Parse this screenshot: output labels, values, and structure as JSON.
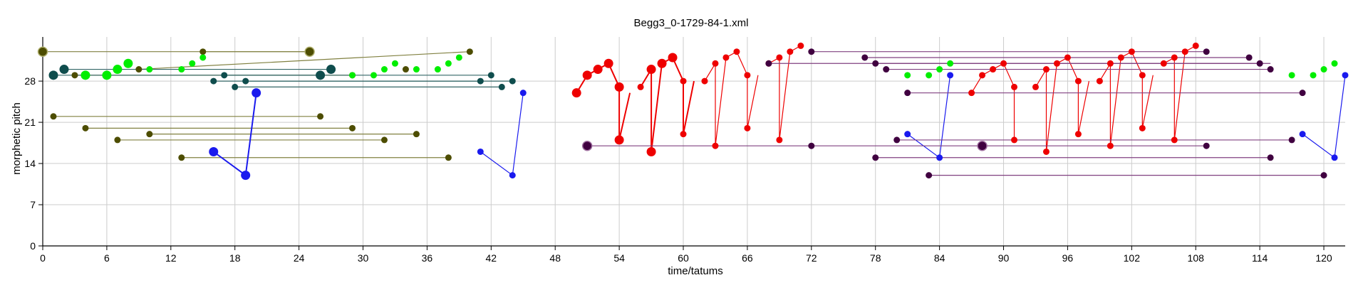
{
  "chart_data": {
    "type": "scatter",
    "title": "Begg3_0-1729-84-1.xml",
    "xlabel": "time/tatums",
    "ylabel": "morphetic pitch",
    "xlim": [
      0,
      122
    ],
    "ylim": [
      0,
      35.5
    ],
    "x_ticks": [
      0,
      6,
      12,
      18,
      24,
      30,
      36,
      42,
      48,
      54,
      60,
      66,
      72,
      78,
      84,
      90,
      96,
      102,
      108,
      114,
      120
    ],
    "y_ticks": [
      0,
      7,
      14,
      21,
      28
    ],
    "grid": true,
    "colors": {
      "olive": "#4d4d00",
      "olive_line": "#808040",
      "teal": "#0f4d4d",
      "teal_line": "#336666",
      "green": "#00ee00",
      "blue": "#1a1aee",
      "red": "#ee0000",
      "purple": "#400040",
      "purple_line": "#804080",
      "grid": "#cccccc"
    },
    "series": [
      {
        "group": "olive",
        "segments": [
          [
            [
              0,
              33
            ],
            [
              25,
              33
            ]
          ],
          [
            [
              15,
              33
            ],
            [
              25,
              33
            ]
          ],
          [
            [
              3,
              29
            ],
            [
              29,
              29
            ]
          ],
          [
            [
              9,
              30
            ],
            [
              40,
              33
            ]
          ],
          [
            [
              1,
              22
            ],
            [
              26,
              22
            ]
          ],
          [
            [
              4,
              20
            ],
            [
              29,
              20
            ]
          ],
          [
            [
              10,
              19
            ],
            [
              35,
              19
            ]
          ],
          [
            [
              7,
              18
            ],
            [
              32,
              18
            ]
          ],
          [
            [
              13,
              15
            ],
            [
              38,
              15
            ]
          ]
        ],
        "points": [
          [
            0,
            33,
            "big"
          ],
          [
            25,
            33,
            "big"
          ],
          [
            15,
            33
          ],
          [
            40,
            33
          ],
          [
            9,
            30
          ],
          [
            26,
            29
          ],
          [
            29,
            29
          ],
          [
            3,
            29
          ],
          [
            34,
            30
          ],
          [
            1,
            22
          ],
          [
            26,
            22
          ],
          [
            4,
            20
          ],
          [
            29,
            20
          ],
          [
            10,
            19
          ],
          [
            35,
            19
          ],
          [
            7,
            18
          ],
          [
            32,
            18
          ],
          [
            13,
            15
          ],
          [
            38,
            15
          ]
        ]
      },
      {
        "group": "teal",
        "segments": [
          [
            [
              1,
              29
            ],
            [
              26,
              29
            ]
          ],
          [
            [
              2,
              30
            ],
            [
              27,
              30
            ]
          ],
          [
            [
              16,
              28
            ],
            [
              41,
              28
            ]
          ],
          [
            [
              17,
              29
            ],
            [
              42,
              29
            ]
          ],
          [
            [
              18,
              27
            ],
            [
              43,
              27
            ]
          ],
          [
            [
              19,
              28
            ],
            [
              44,
              28
            ]
          ]
        ],
        "points": [
          [
            1,
            29,
            "big"
          ],
          [
            2,
            30,
            "big"
          ],
          [
            26,
            29,
            "big"
          ],
          [
            27,
            30,
            "big"
          ],
          [
            16,
            28
          ],
          [
            17,
            29
          ],
          [
            18,
            27
          ],
          [
            19,
            28
          ],
          [
            41,
            28
          ],
          [
            42,
            29
          ],
          [
            43,
            27
          ],
          [
            44,
            28
          ]
        ]
      },
      {
        "group": "green",
        "points": [
          [
            4,
            29,
            "big"
          ],
          [
            6,
            29,
            "big"
          ],
          [
            7,
            30,
            "big"
          ],
          [
            8,
            31,
            "big"
          ],
          [
            10,
            30
          ],
          [
            13,
            30
          ],
          [
            14,
            31
          ],
          [
            15,
            32
          ],
          [
            29,
            29
          ],
          [
            31,
            29
          ],
          [
            32,
            30
          ],
          [
            33,
            31
          ],
          [
            35,
            30
          ],
          [
            37,
            30
          ],
          [
            38,
            31
          ],
          [
            39,
            32
          ],
          [
            81,
            29
          ],
          [
            83,
            29
          ],
          [
            84,
            30
          ],
          [
            85,
            31
          ],
          [
            117,
            29
          ],
          [
            119,
            29
          ],
          [
            120,
            30
          ],
          [
            121,
            31
          ]
        ]
      },
      {
        "group": "blue",
        "lines": [
          [
            [
              16,
              16
            ],
            [
              19,
              12
            ],
            [
              20,
              26
            ]
          ],
          [
            [
              41,
              16
            ],
            [
              44,
              12
            ],
            [
              45,
              26
            ]
          ],
          [
            [
              81,
              19
            ],
            [
              84,
              15
            ],
            [
              85,
              29
            ]
          ],
          [
            [
              118,
              19
            ],
            [
              121,
              15
            ],
            [
              122,
              29
            ]
          ]
        ],
        "big_lines": [
          0
        ],
        "points": [
          [
            16,
            16,
            "big"
          ],
          [
            19,
            12,
            "big"
          ],
          [
            20,
            26,
            "big"
          ],
          [
            41,
            16
          ],
          [
            44,
            12
          ],
          [
            45,
            26
          ],
          [
            81,
            19
          ],
          [
            84,
            15
          ],
          [
            85,
            29
          ],
          [
            118,
            19
          ],
          [
            121,
            15
          ],
          [
            122,
            29
          ]
        ]
      },
      {
        "group": "red",
        "lines": [
          [
            [
              50,
              26
            ],
            [
              51,
              29
            ],
            [
              52,
              30
            ],
            [
              53,
              31
            ],
            [
              54,
              27
            ],
            [
              54,
              18
            ],
            [
              55,
              26
            ]
          ],
          [
            [
              56,
              27
            ],
            [
              57,
              30
            ],
            [
              57,
              16
            ],
            [
              58,
              31
            ],
            [
              59,
              32
            ],
            [
              60,
              28
            ],
            [
              60,
              19
            ],
            [
              61,
              28
            ]
          ],
          [
            [
              62,
              28
            ],
            [
              63,
              31
            ],
            [
              63,
              17
            ],
            [
              64,
              32
            ],
            [
              65,
              33
            ],
            [
              66,
              29
            ],
            [
              66,
              20
            ],
            [
              67,
              29
            ]
          ],
          [
            [
              68,
              31
            ],
            [
              69,
              32
            ],
            [
              69,
              18
            ],
            [
              70,
              33
            ],
            [
              71,
              34
            ]
          ],
          [
            [
              87,
              26
            ],
            [
              88,
              29
            ],
            [
              89,
              30
            ],
            [
              90,
              31
            ],
            [
              91,
              27
            ],
            [
              91,
              18
            ]
          ],
          [
            [
              93,
              27
            ],
            [
              94,
              30
            ],
            [
              94,
              16
            ],
            [
              95,
              31
            ],
            [
              96,
              32
            ],
            [
              97,
              28
            ],
            [
              97,
              19
            ],
            [
              98,
              28
            ]
          ],
          [
            [
              99,
              28
            ],
            [
              100,
              31
            ],
            [
              100,
              17
            ],
            [
              101,
              32
            ],
            [
              102,
              33
            ],
            [
              103,
              29
            ],
            [
              103,
              20
            ],
            [
              104,
              29
            ]
          ],
          [
            [
              105,
              31
            ],
            [
              106,
              32
            ],
            [
              106,
              18
            ],
            [
              107,
              33
            ],
            [
              108,
              34
            ]
          ]
        ],
        "big_lines": [
          0,
          1
        ],
        "points": [
          [
            50,
            26,
            "big"
          ],
          [
            51,
            29,
            "big"
          ],
          [
            52,
            30,
            "big"
          ],
          [
            53,
            31,
            "big"
          ],
          [
            54,
            27,
            "big"
          ],
          [
            54,
            18,
            "big"
          ],
          [
            57,
            30,
            "big"
          ],
          [
            57,
            16,
            "big"
          ],
          [
            58,
            31,
            "big"
          ],
          [
            59,
            32,
            "big"
          ],
          [
            56,
            27
          ],
          [
            60,
            28
          ],
          [
            60,
            19
          ],
          [
            62,
            28
          ],
          [
            63,
            31
          ],
          [
            63,
            17
          ],
          [
            64,
            32
          ],
          [
            65,
            33
          ],
          [
            66,
            29
          ],
          [
            66,
            20
          ],
          [
            69,
            32
          ],
          [
            69,
            18
          ],
          [
            70,
            33
          ],
          [
            71,
            34
          ],
          [
            68,
            31
          ],
          [
            87,
            26
          ],
          [
            88,
            29
          ],
          [
            89,
            30
          ],
          [
            90,
            31
          ],
          [
            91,
            27
          ],
          [
            91,
            18
          ],
          [
            93,
            27
          ],
          [
            94,
            30
          ],
          [
            94,
            16
          ],
          [
            95,
            31
          ],
          [
            96,
            32
          ],
          [
            97,
            28
          ],
          [
            97,
            19
          ],
          [
            99,
            28
          ],
          [
            100,
            31
          ],
          [
            100,
            17
          ],
          [
            101,
            32
          ],
          [
            102,
            33
          ],
          [
            103,
            29
          ],
          [
            103,
            20
          ],
          [
            105,
            31
          ],
          [
            106,
            32
          ],
          [
            106,
            18
          ],
          [
            107,
            33
          ],
          [
            108,
            34
          ]
        ]
      },
      {
        "group": "purple",
        "segments": [
          [
            [
              51,
              17
            ],
            [
              88,
              17
            ]
          ],
          [
            [
              72,
              33
            ],
            [
              109,
              33
            ]
          ],
          [
            [
              68,
              31
            ],
            [
              115,
              31
            ]
          ],
          [
            [
              77,
              32
            ],
            [
              113,
              32
            ]
          ],
          [
            [
              78,
              31
            ],
            [
              114,
              31
            ]
          ],
          [
            [
              79,
              30
            ],
            [
              115,
              30
            ]
          ],
          [
            [
              81,
              26
            ],
            [
              118,
              26
            ]
          ],
          [
            [
              80,
              18
            ],
            [
              117,
              18
            ]
          ],
          [
            [
              88,
              17
            ],
            [
              109,
              17
            ]
          ],
          [
            [
              78,
              15
            ],
            [
              115,
              15
            ]
          ],
          [
            [
              83,
              12
            ],
            [
              120,
              12
            ]
          ]
        ],
        "points": [
          [
            51,
            17,
            "big"
          ],
          [
            88,
            17,
            "big"
          ],
          [
            72,
            17
          ],
          [
            109,
            17
          ],
          [
            72,
            33
          ],
          [
            109,
            33
          ],
          [
            68,
            31
          ],
          [
            77,
            32
          ],
          [
            113,
            32
          ],
          [
            78,
            31
          ],
          [
            114,
            31
          ],
          [
            79,
            30
          ],
          [
            115,
            30
          ],
          [
            81,
            26
          ],
          [
            118,
            26
          ],
          [
            80,
            18
          ],
          [
            117,
            18
          ],
          [
            78,
            15
          ],
          [
            115,
            15
          ],
          [
            83,
            12
          ],
          [
            120,
            12
          ]
        ]
      }
    ]
  }
}
